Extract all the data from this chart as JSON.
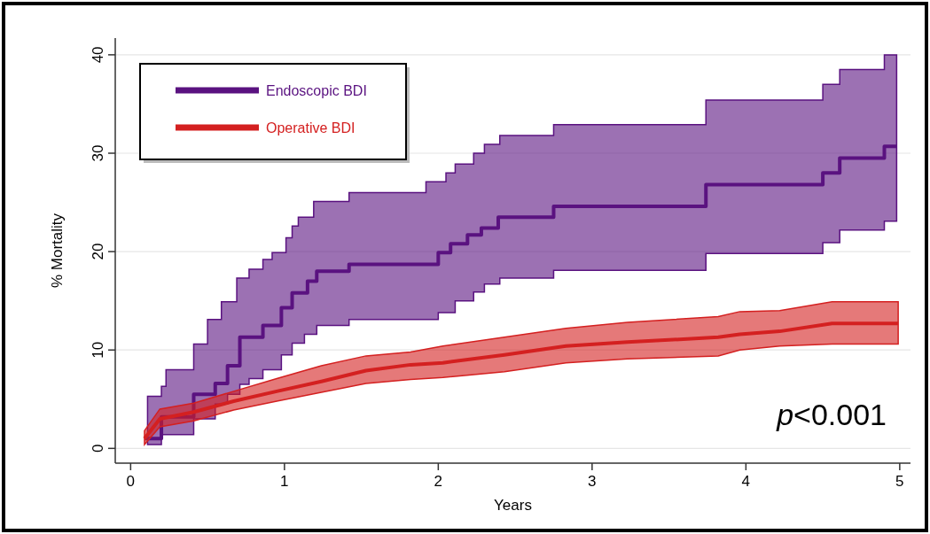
{
  "chart_data": {
    "type": "step",
    "xlabel": "Years",
    "ylabel": "% Mortality",
    "xlim": [
      -0.1,
      5.07
    ],
    "ylim": [
      -1.5,
      41.7
    ],
    "xticks": [
      0,
      1,
      2,
      3,
      4,
      5
    ],
    "yticks": [
      0,
      10,
      20,
      30,
      40
    ],
    "grid": "y",
    "legend": "top left",
    "annotations": [
      "p<0.001"
    ],
    "series": [
      {
        "name": "Endoscopic BDI",
        "color": "#5a1280",
        "x": [
          0.09,
          0.11,
          0.2,
          0.23,
          0.41,
          0.5,
          0.55,
          0.59,
          0.63,
          0.69,
          0.71,
          0.77,
          0.86,
          0.92,
          0.98,
          1.01,
          1.05,
          1.09,
          1.13,
          1.15,
          1.19,
          1.21,
          1.42,
          1.92,
          2.0,
          2.05,
          2.08,
          2.11,
          2.19,
          2.23,
          2.28,
          2.3,
          2.39,
          2.4,
          2.75,
          3.74,
          4.5,
          4.61,
          4.9,
          4.98
        ],
        "values": [
          1,
          1,
          3.2,
          3.2,
          5.5,
          5.5,
          6.6,
          6.6,
          8.4,
          8.4,
          11.3,
          11.3,
          12.5,
          12.5,
          14.3,
          14.3,
          15.8,
          15.8,
          15.8,
          17,
          17,
          18,
          18.7,
          18.7,
          19.9,
          19.9,
          20.8,
          20.8,
          21.7,
          21.7,
          22.4,
          22.4,
          23.5,
          23.5,
          24.6,
          26.8,
          28.0,
          29.5,
          30.7,
          30.7
        ],
        "upper": [
          1,
          5.3,
          6.3,
          8,
          10.6,
          13.1,
          13.1,
          14.9,
          14.9,
          17.3,
          17.3,
          18.2,
          19.2,
          19.9,
          19.9,
          21.4,
          22.6,
          23.5,
          23.5,
          23.5,
          25.1,
          25.1,
          26.0,
          27.1,
          27.1,
          28.0,
          28.0,
          28.9,
          28.9,
          30.0,
          30.0,
          30.9,
          30.9,
          31.8,
          32.9,
          35.4,
          37.0,
          38.5,
          40.0,
          40.0
        ],
        "lower": [
          1,
          0.4,
          1.4,
          1.4,
          3.0,
          3.0,
          4.5,
          4.5,
          5.5,
          5.5,
          6.5,
          7.1,
          8.0,
          8.0,
          9.5,
          9.5,
          10.7,
          10.7,
          11.6,
          11.6,
          11.6,
          12.5,
          13.1,
          13.1,
          13.8,
          13.8,
          13.8,
          15.0,
          15.0,
          15.9,
          15.9,
          16.7,
          16.7,
          17.3,
          18.1,
          19.8,
          20.9,
          22.2,
          23.1,
          23.1
        ]
      },
      {
        "name": "Operative BDI",
        "type": "line",
        "color": "#d42020",
        "x": [
          0.09,
          0.19,
          0.41,
          0.67,
          0.95,
          1.24,
          1.53,
          1.82,
          2.03,
          2.43,
          2.83,
          3.23,
          3.82,
          3.96,
          4.22,
          4.56,
          4.99
        ],
        "values": [
          1.0,
          3.0,
          3.7,
          4.8,
          5.8,
          6.8,
          7.9,
          8.5,
          8.7,
          9.5,
          10.4,
          10.8,
          11.3,
          11.6,
          11.9,
          12.7,
          12.7
        ],
        "upper": [
          1.8,
          4.0,
          4.6,
          5.8,
          7.1,
          8.4,
          9.4,
          9.8,
          10.4,
          11.3,
          12.2,
          12.8,
          13.4,
          13.9,
          14.0,
          14.9,
          14.9
        ],
        "lower": [
          0.4,
          2.2,
          2.8,
          3.9,
          4.8,
          5.7,
          6.6,
          7.0,
          7.2,
          7.8,
          8.7,
          9.1,
          9.4,
          10.0,
          10.4,
          10.6,
          10.6
        ]
      }
    ]
  }
}
